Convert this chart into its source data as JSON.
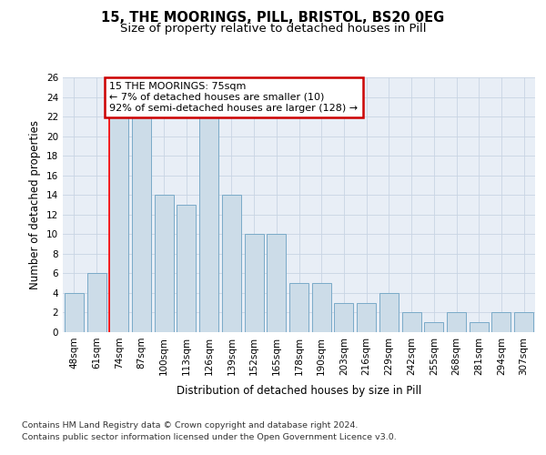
{
  "title": "15, THE MOORINGS, PILL, BRISTOL, BS20 0EG",
  "subtitle": "Size of property relative to detached houses in Pill",
  "xlabel": "Distribution of detached houses by size in Pill",
  "ylabel": "Number of detached properties",
  "categories": [
    "48sqm",
    "61sqm",
    "74sqm",
    "87sqm",
    "100sqm",
    "113sqm",
    "126sqm",
    "139sqm",
    "152sqm",
    "165sqm",
    "178sqm",
    "190sqm",
    "203sqm",
    "216sqm",
    "229sqm",
    "242sqm",
    "255sqm",
    "268sqm",
    "281sqm",
    "294sqm",
    "307sqm"
  ],
  "values": [
    4,
    6,
    22,
    22,
    14,
    13,
    22,
    14,
    10,
    10,
    5,
    5,
    3,
    3,
    4,
    2,
    1,
    2,
    1,
    2,
    2
  ],
  "bar_color": "#ccdce8",
  "bar_edge_color": "#7aaac8",
  "red_line_index": 2,
  "annotation_text": "15 THE MOORINGS: 75sqm\n← 7% of detached houses are smaller (10)\n92% of semi-detached houses are larger (128) →",
  "annotation_box_color": "#ffffff",
  "annotation_box_edge": "#cc0000",
  "ylim": [
    0,
    26
  ],
  "yticks": [
    0,
    2,
    4,
    6,
    8,
    10,
    12,
    14,
    16,
    18,
    20,
    22,
    24,
    26
  ],
  "grid_color": "#c8d4e4",
  "background_color": "#e8eef6",
  "footer_line1": "Contains HM Land Registry data © Crown copyright and database right 2024.",
  "footer_line2": "Contains public sector information licensed under the Open Government Licence v3.0.",
  "title_fontsize": 10.5,
  "subtitle_fontsize": 9.5,
  "axis_label_fontsize": 8.5,
  "tick_fontsize": 7.5,
  "annotation_fontsize": 8,
  "footer_fontsize": 6.8
}
